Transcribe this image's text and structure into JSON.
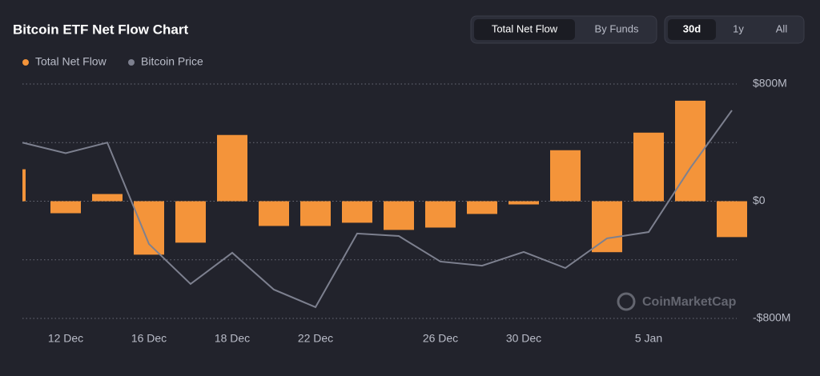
{
  "chart_data": {
    "type": "bar-line",
    "title": "Bitcoin ETF Net Flow Chart",
    "view_tabs": [
      "Total Net Flow",
      "By Funds"
    ],
    "range_tabs": [
      "30d",
      "1y",
      "All"
    ],
    "watermark": "CoinMarketCap",
    "categories": [
      null,
      "12 Dec",
      null,
      "16 Dec",
      null,
      "18 Dec",
      null,
      "22 Dec",
      null,
      null,
      "26 Dec",
      null,
      "30 Dec",
      null,
      null,
      "5 Jan",
      null,
      null
    ],
    "series": [
      {
        "name": "Total Net Flow",
        "color": "#f4943a",
        "values": [
          218,
          -82,
          49,
          -365,
          -283,
          452,
          -169,
          -169,
          -147,
          -196,
          -180,
          -87,
          -22,
          348,
          -348,
          468,
          686,
          -245
        ]
      },
      {
        "name": "Bitcoin Price",
        "color": "#7d808f",
        "axis": "y2",
        "values": [
          105000,
          104100,
          105000,
          96350,
          92940,
          95600,
          92460,
          90960,
          97240,
          97030,
          94850,
          94500,
          95670,
          94300,
          96830,
          97370,
          102830,
          107750
        ]
      }
    ],
    "ylim": [
      -800,
      800
    ],
    "yticks": [
      {
        "value": 800,
        "label": "$800M"
      },
      {
        "value": 400,
        "label": null
      },
      {
        "value": 0,
        "label": "$0"
      },
      {
        "value": -400,
        "label": null
      },
      {
        "value": -800,
        "label": "-$800M"
      }
    ],
    "y2lim": [
      90000,
      110000
    ],
    "grid": true
  }
}
